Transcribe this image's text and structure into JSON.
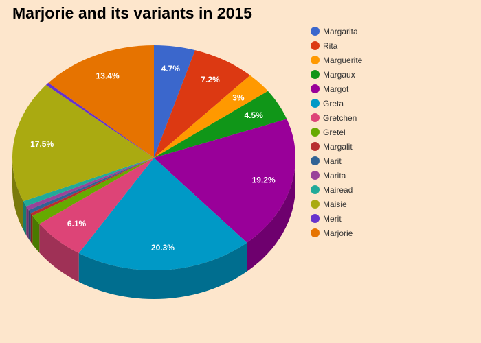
{
  "chart_data": {
    "type": "pie",
    "title": "Marjorie and its variants in 2015",
    "legend_position": "right",
    "slices": [
      {
        "name": "Margarita",
        "value": 4.7,
        "label": "4.7%",
        "color": "#3b67cc"
      },
      {
        "name": "Rita",
        "value": 7.2,
        "label": "7.2%",
        "color": "#dc3912"
      },
      {
        "name": "Marguerite",
        "value": 3.0,
        "label": "3%",
        "color": "#ff9900"
      },
      {
        "name": "Margaux",
        "value": 4.5,
        "label": "4.5%",
        "color": "#109618"
      },
      {
        "name": "Margot",
        "value": 19.2,
        "label": "19.2%",
        "color": "#990099"
      },
      {
        "name": "Greta",
        "value": 20.3,
        "label": "20.3%",
        "color": "#0099c6"
      },
      {
        "name": "Gretchen",
        "value": 6.1,
        "label": "6.1%",
        "color": "#dd4477"
      },
      {
        "name": "Gretel",
        "value": 1.4,
        "label": "",
        "color": "#66aa00"
      },
      {
        "name": "Margalit",
        "value": 0.4,
        "label": "",
        "color": "#b82e2e"
      },
      {
        "name": "Marit",
        "value": 0.5,
        "label": "",
        "color": "#316395"
      },
      {
        "name": "Marita",
        "value": 0.6,
        "label": "",
        "color": "#994499"
      },
      {
        "name": "Mairead",
        "value": 0.8,
        "label": "",
        "color": "#22aa99"
      },
      {
        "name": "Maisie",
        "value": 17.5,
        "label": "17.5%",
        "color": "#aaaa11"
      },
      {
        "name": "Merit",
        "value": 0.4,
        "label": "",
        "color": "#6633cc"
      },
      {
        "name": "Marjorie",
        "value": 13.4,
        "label": "13.4%",
        "color": "#e67300"
      }
    ]
  }
}
